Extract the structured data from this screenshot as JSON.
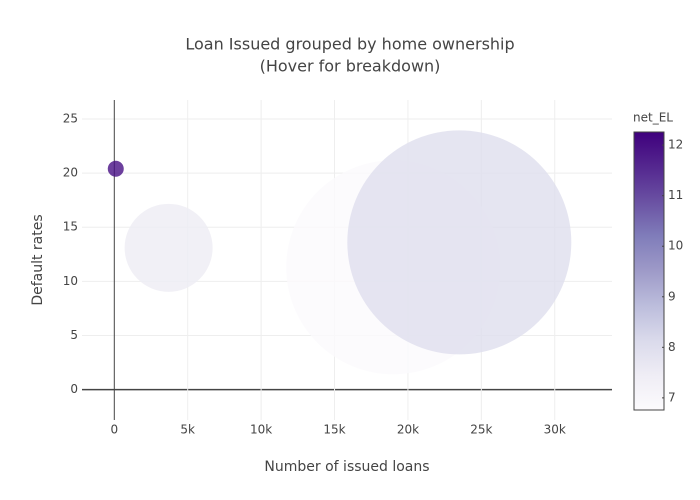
{
  "chart_data": {
    "type": "bubble",
    "title": "Loan Issued grouped by home ownership",
    "subtitle": "(Hover for breakdown)",
    "x_label": "Number of issued loans",
    "y_label": "Default rates",
    "colorbar_title": "net_EL",
    "x": [
      100,
      3700,
      19000,
      23500
    ],
    "values": [
      20.4,
      13.1,
      11.3,
      13.6
    ],
    "sizes": [
      16,
      88,
      214,
      224
    ],
    "color_values": [
      12.0,
      7.5,
      6.8,
      8.0
    ],
    "xlim": [
      -2200,
      33900
    ],
    "ylim": [
      -2.8,
      26.75
    ],
    "clim": [
      6.76,
      12.26
    ],
    "xticks": [
      0,
      {
        "value": 5000,
        "label": "5k"
      },
      {
        "value": 10000,
        "label": "10k"
      },
      {
        "value": 15000,
        "label": "15k"
      },
      {
        "value": 20000,
        "label": "20k"
      },
      {
        "value": 25000,
        "label": "25k"
      },
      {
        "value": 30000,
        "label": "30k"
      }
    ],
    "yticks": [
      0,
      5,
      10,
      15,
      20,
      25
    ],
    "cticks": [
      7,
      8,
      9,
      10,
      11,
      12
    ],
    "colorscale": [
      "#fcfbfd",
      "#efedf5",
      "#dadaeb",
      "#bcbddc",
      "#9e9ac8",
      "#807dba",
      "#6a51a3",
      "#54278f",
      "#3f007d"
    ],
    "opacity": 0.8,
    "grid": true
  }
}
